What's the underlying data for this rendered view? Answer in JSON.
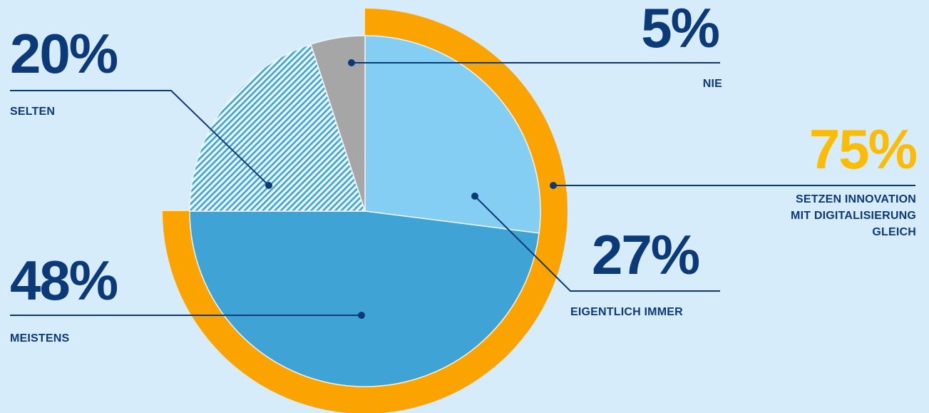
{
  "chart_data": {
    "type": "pie",
    "slices": [
      {
        "label": "EIGENTLICH IMMER",
        "value": 27,
        "display": "27%",
        "color": "#84cef3",
        "pattern": "solid"
      },
      {
        "label": "MEISTENS",
        "value": 48,
        "display": "48%",
        "color": "#3fa3d6",
        "pattern": "solid"
      },
      {
        "label": "SELTEN",
        "value": 20,
        "display": "20%",
        "color": "#3fa3d6",
        "pattern": "hatched"
      },
      {
        "label": "NIE",
        "value": 5,
        "display": "5%",
        "color": "#a6a6a6",
        "pattern": "solid"
      }
    ],
    "highlight_ring": {
      "value": 75,
      "display": "75%",
      "label_lines": [
        "SETZEN INNOVATION",
        "MIT DIGITALISIERUNG",
        "GLEICH"
      ],
      "color": "#fba300"
    }
  },
  "colors": {
    "background": "#d6ecfa",
    "text": "#0c3a78",
    "accent": "#fba300",
    "highlight_text": "#fbbc05"
  }
}
